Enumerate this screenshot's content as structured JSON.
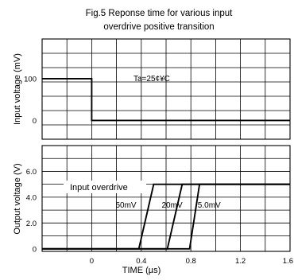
{
  "title_line1": "Fig.5 Reponse time for various input",
  "title_line2": "overdrive positive transition",
  "chart_data": [
    {
      "type": "line",
      "ylabel": "Input voltage  (mV)",
      "annotation": "Ta=25°C",
      "annotation_display": "Ta=25¢¥C",
      "ylim": [
        -45,
        195
      ],
      "yticks": [
        0,
        100
      ],
      "ytick_labels": [
        "0",
        "100"
      ],
      "grid": true,
      "series": [
        {
          "x": [
            -0.4,
            0.0,
            0.0,
            1.6
          ],
          "y": [
            100,
            100,
            0,
            0
          ]
        }
      ]
    },
    {
      "type": "line",
      "xlabel": "TIME   (µs)",
      "ylabel": "Output voltage   (V)",
      "xlim": [
        -0.4,
        1.6
      ],
      "xticks": [
        0,
        0.4,
        0.8,
        1.2,
        1.6
      ],
      "xtick_labels": [
        "0",
        "0.4",
        "0.8",
        "1.2",
        "1.6"
      ],
      "ylim": [
        -0.2,
        8.0
      ],
      "yticks": [
        0,
        2.0,
        4.0,
        6.0
      ],
      "ytick_labels": [
        "0",
        "2.0",
        "4.0",
        "6.0"
      ],
      "grid": true,
      "legend_title": "Input overdrive",
      "series": [
        {
          "name": "50mV",
          "x": [
            -0.4,
            0.38,
            0.5,
            1.6
          ],
          "y": [
            0,
            0,
            5.0,
            5.0
          ]
        },
        {
          "name": "20mV",
          "x": [
            -0.4,
            0.61,
            0.73,
            1.6
          ],
          "y": [
            0,
            0,
            5.0,
            5.0
          ]
        },
        {
          "name": "5.0mV",
          "x": [
            -0.4,
            0.79,
            0.87,
            1.6
          ],
          "y": [
            0,
            0,
            5.0,
            5.0
          ]
        }
      ]
    }
  ]
}
